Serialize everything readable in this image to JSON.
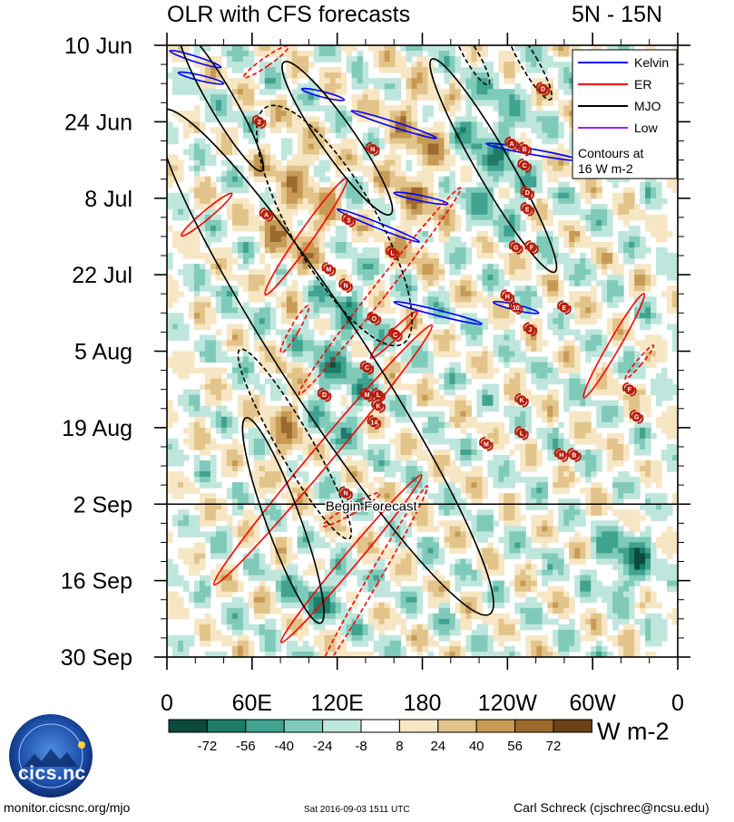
{
  "chart_data": {
    "type": "heatmap",
    "title": "OLR with CFS forecasts",
    "region": "5N - 15N",
    "x_ticks": [
      "0",
      "60E",
      "120E",
      "180",
      "120W",
      "60W",
      "0"
    ],
    "x_range_deg": [
      0,
      360
    ],
    "y_ticks": [
      "10 Jun",
      "24 Jun",
      "8 Jul",
      "22 Jul",
      "5 Aug",
      "19 Aug",
      "2 Sep",
      "16 Sep",
      "30 Sep"
    ],
    "y_range_days": [
      0,
      112
    ],
    "forecast_start_day": 84,
    "forecast_label": "Begin Forecast",
    "legend": [
      {
        "name": "Kelvin",
        "color": "#0000ff"
      },
      {
        "name": "ER",
        "color": "#ff0000"
      },
      {
        "name": "MJO",
        "color": "#000000"
      },
      {
        "name": "Low",
        "color": "#a020f0"
      }
    ],
    "legend_note_1": "Contours at",
    "legend_note_2": "16 W m-2",
    "colorbar_labels": [
      "-72",
      "-56",
      "-40",
      "-24",
      "-8",
      "8",
      "24",
      "40",
      "56",
      "72"
    ],
    "colorbar_colors": [
      "#0b4a3d",
      "#1d7b68",
      "#3fa38f",
      "#7fcab9",
      "#bfe6dc",
      "#ffffff",
      "#f6e6c4",
      "#e2c48a",
      "#c79a55",
      "#9c6a2e",
      "#6b4218"
    ],
    "units": "W m-2",
    "kelvin_waves": [
      {
        "lon0": 2,
        "day0": 1,
        "lon1": 38,
        "day1": 4
      },
      {
        "lon0": 8,
        "day0": 5,
        "lon1": 40,
        "day1": 7
      },
      {
        "lon0": 95,
        "day0": 8,
        "lon1": 125,
        "day1": 10
      },
      {
        "lon0": 130,
        "day0": 12,
        "lon1": 190,
        "day1": 17
      },
      {
        "lon0": 225,
        "day0": 18,
        "lon1": 290,
        "day1": 21
      },
      {
        "lon0": 160,
        "day0": 27,
        "lon1": 198,
        "day1": 29
      },
      {
        "lon0": 120,
        "day0": 30,
        "lon1": 178,
        "day1": 36
      },
      {
        "lon0": 160,
        "day0": 47,
        "lon1": 222,
        "day1": 51
      },
      {
        "lon0": 230,
        "day0": 47,
        "lon1": 262,
        "day1": 49
      }
    ],
    "er_waves": [
      {
        "lon": 70,
        "day": 3,
        "rx": 3,
        "ry": 10,
        "rot": 55,
        "dashed": true
      },
      {
        "lon": 28,
        "day": 31,
        "rx": 3,
        "ry": 12,
        "rot": 50,
        "dashed": false
      },
      {
        "lon": 98,
        "day": 35,
        "rx": 5,
        "ry": 26,
        "rot": 35,
        "dashed": false
      },
      {
        "lon": 150,
        "day": 45,
        "rx": 5,
        "ry": 48,
        "rot": 38,
        "dashed": true
      },
      {
        "lon": 160,
        "day": 53,
        "rx": 3,
        "ry": 12,
        "rot": 45,
        "dashed": false
      },
      {
        "lon": 90,
        "day": 52,
        "rx": 3,
        "ry": 10,
        "rot": 30,
        "dashed": true
      },
      {
        "lon": 315,
        "day": 55,
        "rx": 4,
        "ry": 22,
        "rot": 30,
        "dashed": false
      },
      {
        "lon": 333,
        "day": 58,
        "rx": 2,
        "ry": 8,
        "rot": 40,
        "dashed": true
      },
      {
        "lon": 110,
        "day": 75,
        "rx": 7,
        "ry": 62,
        "rot": 40,
        "dashed": false
      },
      {
        "lon": 130,
        "day": 94,
        "rx": 5,
        "ry": 40,
        "rot": 40,
        "dashed": false
      },
      {
        "lon": 145,
        "day": 98,
        "rx": 4,
        "ry": 40,
        "rot": 30,
        "dashed": true
      },
      {
        "lon": 130,
        "day": 85,
        "rx": 3,
        "ry": 12,
        "rot": 60,
        "dashed": true
      }
    ],
    "mjo_events": [
      {
        "lon": 38,
        "day": 10,
        "rx": 9,
        "ry": 30,
        "rot": -30,
        "dashed": false
      },
      {
        "lon": 120,
        "day": 17,
        "rx": 12,
        "ry": 34,
        "rot": -35,
        "dashed": false
      },
      {
        "lon": 118,
        "day": 33,
        "rx": 30,
        "ry": 50,
        "rot": -30,
        "dashed": true
      },
      {
        "lon": 230,
        "day": 22,
        "rx": 12,
        "ry": 45,
        "rot": -30,
        "dashed": false
      },
      {
        "lon": 112,
        "day": 58,
        "rx": 30,
        "ry": 110,
        "rot": -33,
        "dashed": false
      },
      {
        "lon": 90,
        "day": 73,
        "rx": 12,
        "ry": 40,
        "rot": -30,
        "dashed": true
      },
      {
        "lon": 82,
        "day": 87,
        "rx": 12,
        "ry": 40,
        "rot": -20,
        "dashed": false
      },
      {
        "lon": 215,
        "day": 2,
        "rx": 5,
        "ry": 12,
        "rot": -30,
        "dashed": true
      },
      {
        "lon": 255,
        "day": 3,
        "rx": 6,
        "ry": 16,
        "rot": -30,
        "dashed": true
      }
    ],
    "storms": [
      {
        "label": "D",
        "lon": 265,
        "day": 8
      },
      {
        "label": "2",
        "lon": 65,
        "day": 14
      },
      {
        "label": "N",
        "lon": 145,
        "day": 19
      },
      {
        "label": "A",
        "lon": 243,
        "day": 18
      },
      {
        "label": "B",
        "lon": 252,
        "day": 19
      },
      {
        "label": "C",
        "lon": 252,
        "day": 22
      },
      {
        "label": "D",
        "lon": 254,
        "day": 27
      },
      {
        "label": "E",
        "lon": 254,
        "day": 30
      },
      {
        "label": "A",
        "lon": 70,
        "day": 31
      },
      {
        "label": "3",
        "lon": 128,
        "day": 32
      },
      {
        "label": "G",
        "lon": 246,
        "day": 37
      },
      {
        "label": "F",
        "lon": 257,
        "day": 37
      },
      {
        "label": "L",
        "lon": 159,
        "day": 38
      },
      {
        "label": "M",
        "lon": 114,
        "day": 41
      },
      {
        "label": "N",
        "lon": 126,
        "day": 44
      },
      {
        "label": "H",
        "lon": 240,
        "day": 46
      },
      {
        "label": "10",
        "lon": 246,
        "day": 48
      },
      {
        "label": "E",
        "lon": 280,
        "day": 48
      },
      {
        "label": "O",
        "lon": 146,
        "day": 50
      },
      {
        "label": "J",
        "lon": 256,
        "day": 52
      },
      {
        "label": "C",
        "lon": 161,
        "day": 53
      },
      {
        "label": "C",
        "lon": 141,
        "day": 59
      },
      {
        "label": "D",
        "lon": 111,
        "day": 64
      },
      {
        "label": "M",
        "lon": 141,
        "day": 64
      },
      {
        "label": "L",
        "lon": 149,
        "day": 64
      },
      {
        "label": "K",
        "lon": 149,
        "day": 66
      },
      {
        "label": "F",
        "lon": 326,
        "day": 63
      },
      {
        "label": "K",
        "lon": 250,
        "day": 65
      },
      {
        "label": "G",
        "lon": 331,
        "day": 68
      },
      {
        "label": "14",
        "lon": 146,
        "day": 69
      },
      {
        "label": "L",
        "lon": 250,
        "day": 71
      },
      {
        "label": "M",
        "lon": 225,
        "day": 73
      },
      {
        "label": "H",
        "lon": 278,
        "day": 75
      },
      {
        "label": "B",
        "lon": 287,
        "day": 75
      },
      {
        "label": "N",
        "lon": 126,
        "day": 82
      }
    ],
    "olr_anomaly_bands": [
      {
        "lon0": 60,
        "day0": 15,
        "lon1": 120,
        "day1": 45,
        "value": 40
      },
      {
        "lon0": 95,
        "day0": 40,
        "lon1": 150,
        "day1": 75,
        "value": -40
      },
      {
        "lon0": 70,
        "day0": 60,
        "lon1": 100,
        "day1": 80,
        "value": 40
      },
      {
        "lon0": 200,
        "day0": 5,
        "lon1": 260,
        "day1": 35,
        "value": -40
      },
      {
        "lon0": 150,
        "day0": 5,
        "lon1": 200,
        "day1": 40,
        "value": 40
      },
      {
        "lon0": 80,
        "day0": 95,
        "lon1": 140,
        "day1": 105,
        "value": -40
      },
      {
        "lon0": 300,
        "day0": 88,
        "lon1": 350,
        "day1": 100,
        "value": -56
      }
    ]
  },
  "footer": {
    "left": "monitor.cicsnc.org/mjo",
    "middle": "Sat 2016-09-03 1511 UTC",
    "right": "Carl Schreck (cjschrec@ncsu.edu)"
  },
  "logo": {
    "text": "cics.nc",
    "ring_text": "Cooperative Institute for Climate and Satellites"
  }
}
